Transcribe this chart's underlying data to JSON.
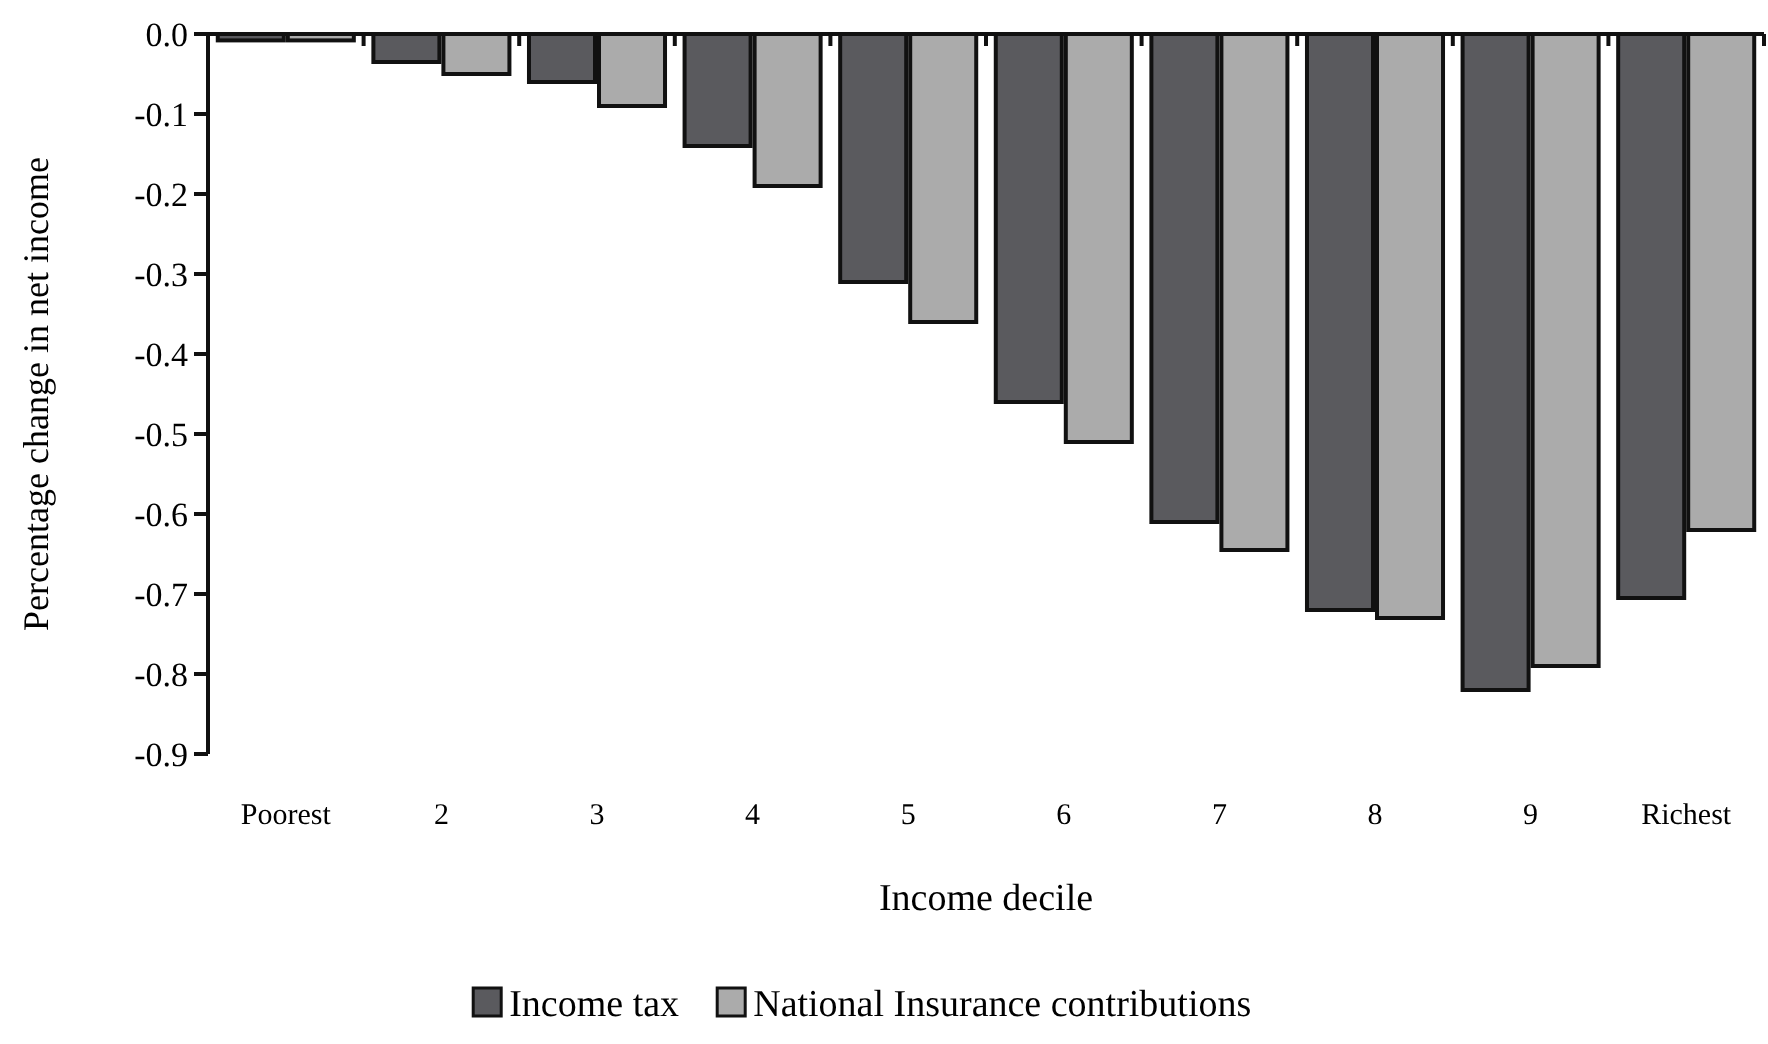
{
  "chart_data": {
    "type": "bar",
    "xlabel": "Income decile",
    "ylabel": "Percentage change in net income",
    "categories": [
      "Poorest",
      "2",
      "3",
      "4",
      "5",
      "6",
      "7",
      "8",
      "9",
      "Richest"
    ],
    "series": [
      {
        "name": "Income tax",
        "color": "#5a5a5e",
        "values": [
          -0.008,
          -0.035,
          -0.06,
          -0.14,
          -0.31,
          -0.46,
          -0.61,
          -0.72,
          -0.82,
          -0.705
        ]
      },
      {
        "name": "National Insurance contributions",
        "color": "#ababab",
        "values": [
          -0.008,
          -0.05,
          -0.09,
          -0.19,
          -0.36,
          -0.51,
          -0.645,
          -0.73,
          -0.79,
          -0.62
        ]
      }
    ],
    "ylim": [
      -0.9,
      0
    ],
    "yticks": [
      {
        "value": 0,
        "label": "0.0"
      },
      {
        "value": -0.1,
        "label": "-0.1"
      },
      {
        "value": -0.2,
        "label": "-0.2"
      },
      {
        "value": -0.3,
        "label": "-0.3"
      },
      {
        "value": -0.4,
        "label": "-0.4"
      },
      {
        "value": -0.5,
        "label": "-0.5"
      },
      {
        "value": -0.6,
        "label": "-0.6"
      },
      {
        "value": -0.7,
        "label": "-0.7"
      },
      {
        "value": -0.8,
        "label": "-0.8"
      },
      {
        "value": -0.9,
        "label": "-0.9"
      }
    ],
    "grid": false,
    "legend": "bottom"
  }
}
